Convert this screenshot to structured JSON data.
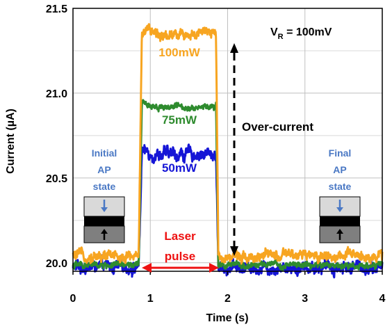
{
  "chart_data": {
    "type": "line",
    "title": "",
    "xlabel": "Time (s)",
    "ylabel": "Current (µA)",
    "xlim": [
      0,
      4
    ],
    "ylim": [
      19.95,
      21.5
    ],
    "x_ticks": [
      "0",
      "1",
      "2",
      "3",
      "4"
    ],
    "y_ticks": [
      "20.0",
      "20.5",
      "21.0",
      "21.5"
    ],
    "grid": true,
    "pulse": {
      "start": 0.85,
      "end": 1.85
    },
    "series": [
      {
        "name": "100mW",
        "color": "#f7a521",
        "baseline": 20.04,
        "plateau": 21.35,
        "noise": 0.025
      },
      {
        "name": "75mW",
        "color": "#2e8b2e",
        "baseline": 19.985,
        "plateau": 20.92,
        "noise": 0.015
      },
      {
        "name": "50mW",
        "color": "#1515d6",
        "baseline": 19.975,
        "plateau": 20.64,
        "noise": 0.03
      }
    ],
    "annotations": {
      "vr_main": "V",
      "vr_sub": "R",
      "vr_value": " = 100mV",
      "overcurrent": "Over-current",
      "laser_line1": "Laser",
      "laser_line2": "pulse",
      "initial_line1": "Initial",
      "initial_line2": "AP",
      "initial_line3": "state",
      "final_line1": "Final",
      "final_line2": "AP",
      "final_line3": "state"
    }
  }
}
